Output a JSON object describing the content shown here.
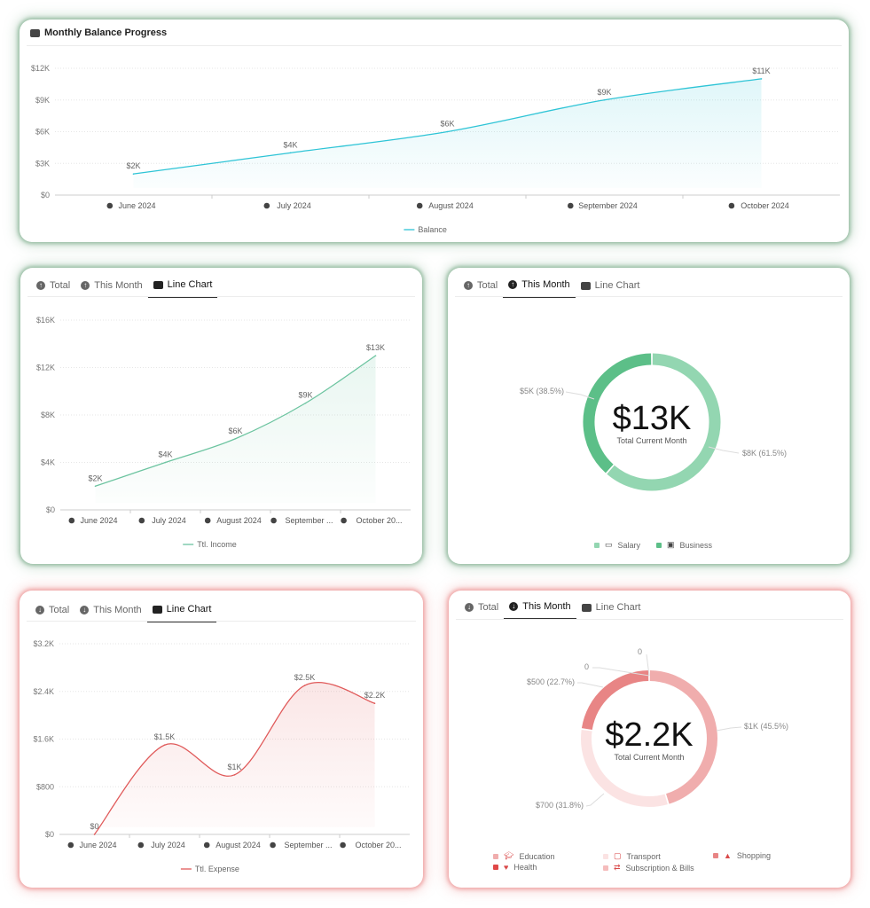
{
  "balance_card": {
    "title": "Monthly Balance Progress",
    "icon": "line-chart-icon"
  },
  "tabs_income": [
    {
      "label": "Total",
      "icon": "arrow-up-circle-icon"
    },
    {
      "label": "This Month",
      "icon": "arrow-up-circle-icon"
    },
    {
      "label": "Line Chart",
      "icon": "line-chart-icon",
      "active": true
    }
  ],
  "tabs_income_month": [
    {
      "label": "Total",
      "icon": "arrow-up-circle-icon"
    },
    {
      "label": "This Month",
      "icon": "arrow-up-circle-icon",
      "active": true
    },
    {
      "label": "Line Chart",
      "icon": "line-chart-icon"
    }
  ],
  "tabs_expense": [
    {
      "label": "Total",
      "icon": "arrow-down-circle-icon"
    },
    {
      "label": "This Month",
      "icon": "arrow-down-circle-icon"
    },
    {
      "label": "Line Chart",
      "icon": "line-chart-icon",
      "active": true
    }
  ],
  "tabs_expense_month": [
    {
      "label": "Total",
      "icon": "arrow-down-circle-icon"
    },
    {
      "label": "This Month",
      "icon": "arrow-down-circle-icon",
      "active": true
    },
    {
      "label": "Line Chart",
      "icon": "line-chart-icon"
    }
  ],
  "chart_data": [
    {
      "type": "area",
      "categories": [
        "June 2024",
        "July 2024",
        "August 2024",
        "September 2024",
        "October 2024"
      ],
      "series": [
        {
          "name": "Balance",
          "values": [
            2,
            4,
            6,
            9,
            11
          ],
          "labels": [
            "$2K",
            "$4K",
            "$6K",
            "$9K",
            "$11K"
          ]
        }
      ],
      "yticks": [
        "$0",
        "$3K",
        "$6K",
        "$9K",
        "$12K"
      ],
      "ylim": [
        0,
        12
      ],
      "unit": "thousand USD",
      "grid": true,
      "legend": "bottom",
      "color": "#2ec4d6"
    },
    {
      "type": "area",
      "categories": [
        "June 2024",
        "July 2024",
        "August 2024",
        "September ...",
        "October 20..."
      ],
      "series": [
        {
          "name": "Ttl. Income",
          "values": [
            2,
            4,
            6,
            9,
            13
          ],
          "labels": [
            "$2K",
            "$4K",
            "$6K",
            "$9K",
            "$13K"
          ]
        }
      ],
      "yticks": [
        "$0",
        "$4K",
        "$8K",
        "$12K",
        "$16K"
      ],
      "ylim": [
        0,
        16
      ],
      "unit": "thousand USD",
      "grid": true,
      "legend": "bottom",
      "color": "#6cc4a0"
    },
    {
      "type": "pie",
      "center_value": "$13K",
      "center_label": "Total Current Month",
      "slices": [
        {
          "name": "Salary",
          "value": 8,
          "label": "$8K (61.5%)",
          "percent": 61.5,
          "color": "#93d6b1",
          "icon": "money-icon"
        },
        {
          "name": "Business",
          "value": 5,
          "label": "$5K (38.5%)",
          "percent": 38.5,
          "color": "#5cbf88",
          "icon": "briefcase-icon"
        }
      ],
      "legend": "bottom"
    },
    {
      "type": "area",
      "categories": [
        "June 2024",
        "July 2024",
        "August 2024",
        "September ...",
        "October 20..."
      ],
      "series": [
        {
          "name": "Ttl. Expense",
          "values": [
            0,
            1.5,
            1,
            2.5,
            2.2
          ],
          "labels": [
            "$0",
            "$1.5K",
            "$1K",
            "$2.5K",
            "$2.2K"
          ]
        }
      ],
      "yticks": [
        "$0",
        "$800",
        "$1.6K",
        "$2.4K",
        "$3.2K"
      ],
      "ylim": [
        0,
        3.2
      ],
      "unit": "thousand USD",
      "grid": true,
      "legend": "bottom",
      "color": "#e05a5a"
    },
    {
      "type": "pie",
      "center_value": "$2.2K",
      "center_label": "Total Current Month",
      "slices": [
        {
          "name": "Education",
          "value": 1000,
          "label": "$1K (45.5%)",
          "percent": 45.5,
          "color": "#f0adad",
          "icon": "graduation-cap-icon"
        },
        {
          "name": "Transport",
          "value": 700,
          "label": "$700 (31.8%)",
          "percent": 31.8,
          "color": "#fbe3e3",
          "icon": "bus-icon"
        },
        {
          "name": "Shopping",
          "value": 500,
          "label": "$500 (22.7%)",
          "percent": 22.7,
          "color": "#e88585",
          "icon": "shopping-bag-icon"
        },
        {
          "name": "Health",
          "value": 0,
          "label": "0",
          "percent": 0,
          "color": "#e04848",
          "icon": "heart-pulse-icon"
        },
        {
          "name": "Subscription & Bills",
          "value": 0,
          "label": "0",
          "percent": 0,
          "color": "#f5bcbc",
          "icon": "repeat-icon"
        }
      ],
      "legend": "bottom"
    }
  ]
}
